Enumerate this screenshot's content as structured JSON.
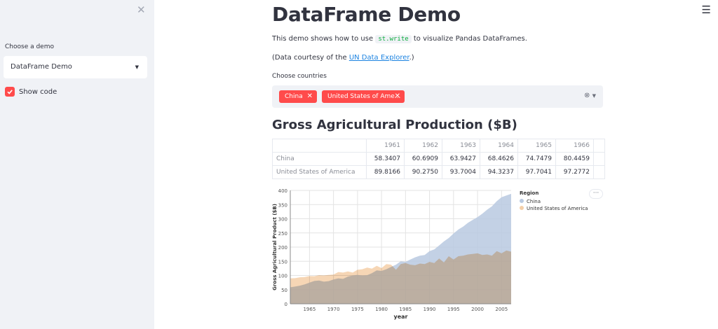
{
  "sidebar": {
    "close_icon": "close-icon",
    "choose_label": "Choose a demo",
    "selected_demo": "DataFrame Demo",
    "show_code_label": "Show code",
    "show_code_checked": true
  },
  "header": {
    "menu_icon": "hamburger-icon"
  },
  "main": {
    "title": "DataFrame Demo",
    "intro_before": "This demo shows how to use",
    "intro_code": "st.write",
    "intro_after": "to visualize Pandas DataFrames.",
    "courtesy_before": "(Data courtesy of the",
    "courtesy_link": "UN Data Explorer",
    "courtesy_after": ".)",
    "choose_countries_label": "Choose countries",
    "selected_countries": [
      "China",
      "United States of Ame..."
    ],
    "section_title": "Gross Agricultural Production ($B)"
  },
  "table": {
    "columns": [
      "1961",
      "1962",
      "1963",
      "1964",
      "1965",
      "1966"
    ],
    "rows": [
      {
        "index": "China",
        "values": [
          "58.3407",
          "60.6909",
          "63.9427",
          "68.4626",
          "74.7479",
          "80.4459"
        ]
      },
      {
        "index": "United States of America",
        "values": [
          "89.8166",
          "90.2750",
          "93.7004",
          "94.3237",
          "97.7041",
          "97.2772"
        ]
      }
    ]
  },
  "colors": {
    "accent": "#ff4b4b",
    "china": "#b9c9e0",
    "usa": "#f4cfa8",
    "link": "#1c83e1"
  },
  "chart_data": {
    "type": "area",
    "xlabel": "year",
    "ylabel": "Gross Agricultural Product ($B)",
    "xlim": [
      1961,
      2007
    ],
    "ylim": [
      0,
      400
    ],
    "yticks": [
      0,
      50,
      100,
      150,
      200,
      250,
      300,
      350,
      400
    ],
    "xticks": [
      1965,
      1970,
      1975,
      1980,
      1985,
      1990,
      1995,
      2000,
      2005
    ],
    "legend_title": "Region",
    "legend_position": "right",
    "grid": true,
    "x": [
      1961,
      1962,
      1963,
      1964,
      1965,
      1966,
      1967,
      1968,
      1969,
      1970,
      1971,
      1972,
      1973,
      1974,
      1975,
      1976,
      1977,
      1978,
      1979,
      1980,
      1981,
      1982,
      1983,
      1984,
      1985,
      1986,
      1987,
      1988,
      1989,
      1990,
      1991,
      1992,
      1993,
      1994,
      1995,
      1996,
      1997,
      1998,
      1999,
      2000,
      2001,
      2002,
      2003,
      2004,
      2005,
      2006,
      2007
    ],
    "series": [
      {
        "name": "China",
        "values": [
          58.34,
          60.69,
          63.94,
          68.46,
          74.75,
          80.45,
          82,
          78,
          80,
          86,
          90,
          88,
          96,
          100,
          102,
          100,
          101,
          108,
          118,
          116,
          122,
          130,
          138,
          150,
          148,
          156,
          164,
          170,
          172,
          186,
          192,
          206,
          220,
          232,
          248,
          262,
          272,
          286,
          296,
          306,
          318,
          332,
          344,
          362,
          376,
          382,
          388
        ]
      },
      {
        "name": "United States of America",
        "values": [
          89.82,
          90.28,
          93.7,
          94.32,
          97.7,
          97.28,
          101,
          100,
          102,
          103,
          112,
          110,
          114,
          110,
          120,
          122,
          128,
          124,
          134,
          126,
          140,
          138,
          120,
          140,
          144,
          138,
          136,
          142,
          140,
          148,
          144,
          160,
          146,
          168,
          156,
          168,
          170,
          174,
          176,
          178,
          172,
          174,
          170,
          186,
          178,
          188,
          184
        ]
      }
    ]
  }
}
